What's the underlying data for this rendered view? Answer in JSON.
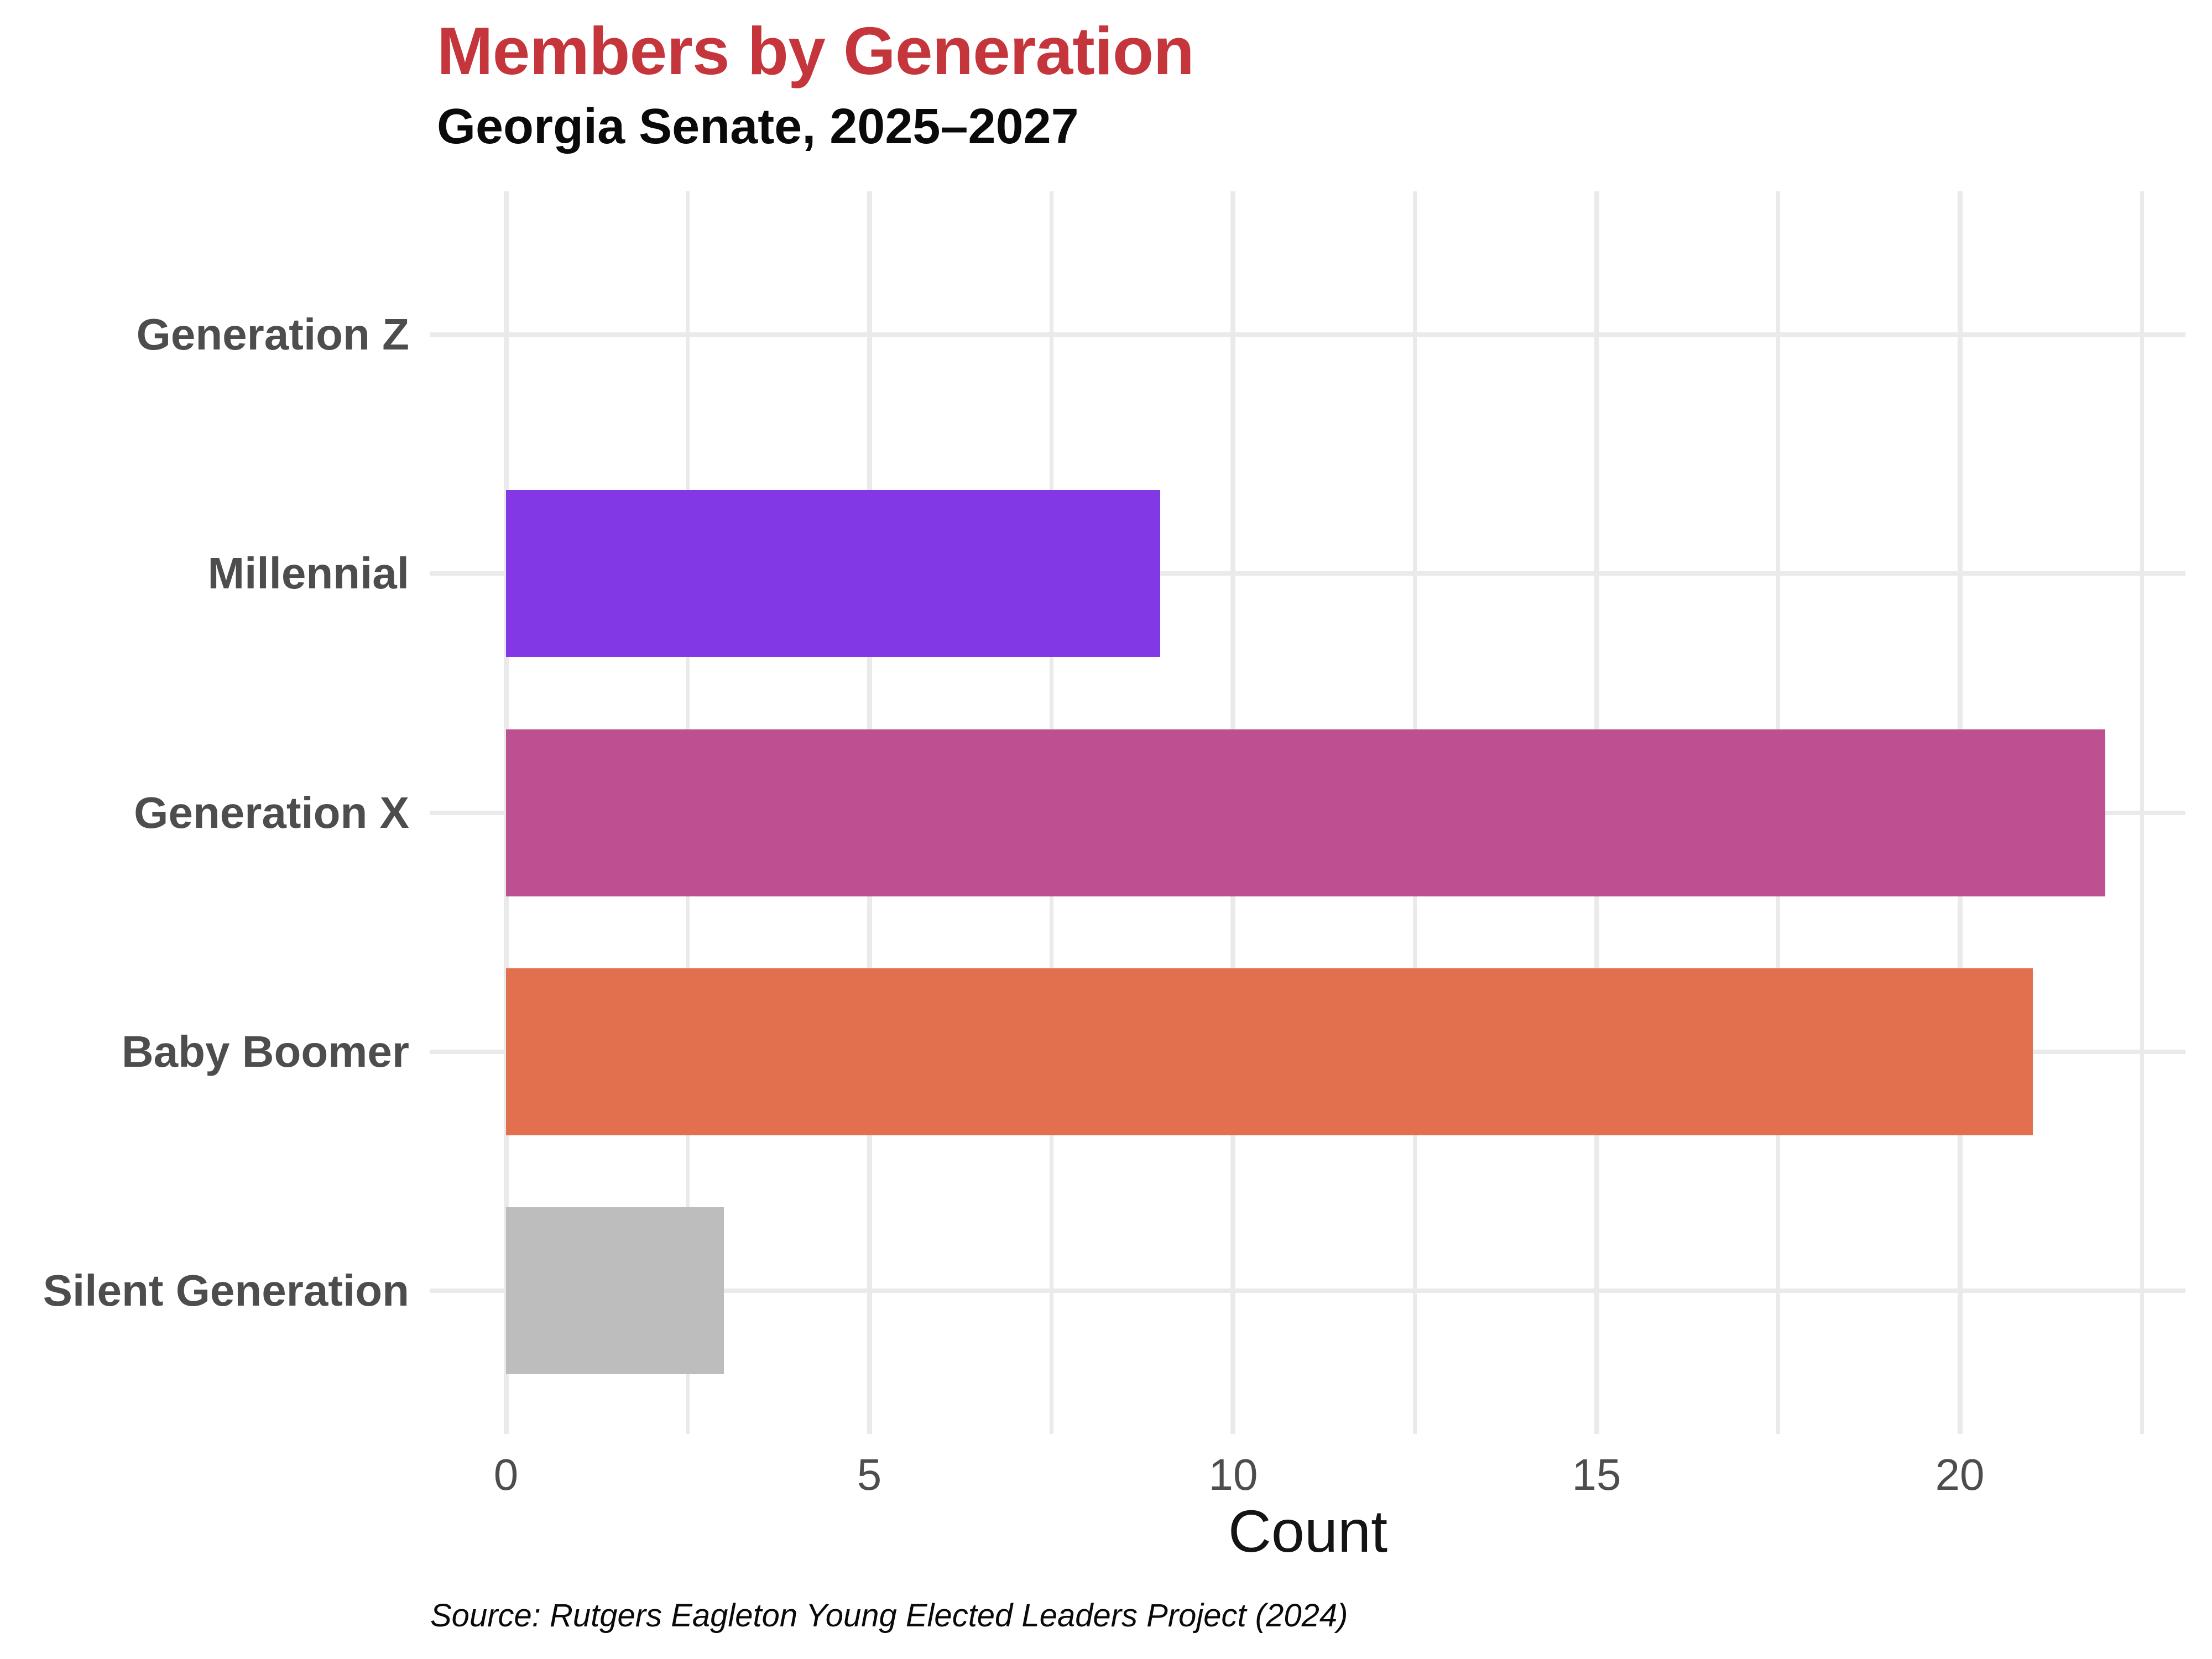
{
  "chart_data": {
    "type": "bar",
    "orientation": "horizontal",
    "title": "Members by Generation",
    "subtitle": "Georgia Senate, 2025–2027",
    "caption": "Source: Rutgers Eagleton Young Elected Leaders Project (2024)",
    "xlabel": "Count",
    "ylabel": "",
    "categories": [
      "Generation Z",
      "Millennial",
      "Generation X",
      "Baby Boomer",
      "Silent Generation"
    ],
    "values": [
      0,
      9,
      22,
      21,
      3
    ],
    "bar_colors": [
      null,
      "#8338E6",
      "#BC5090",
      "#E2704E",
      "#BDBDBD"
    ],
    "x_ticks": [
      0,
      5,
      10,
      15,
      20
    ],
    "x_minor_gridlines": [
      2.5,
      7.5,
      12.5,
      17.5,
      22.5
    ],
    "xlim": [
      -1.05,
      23.1
    ],
    "grid": true,
    "legend": false
  },
  "colors": {
    "title": "#C5363C",
    "subtitle": "#0A0A0A",
    "axis_text": "#4D4D4D",
    "axis_title": "#141414",
    "caption": "#0A0A0A",
    "gridline": "#EAEAEA",
    "background": "#FFFFFF"
  }
}
